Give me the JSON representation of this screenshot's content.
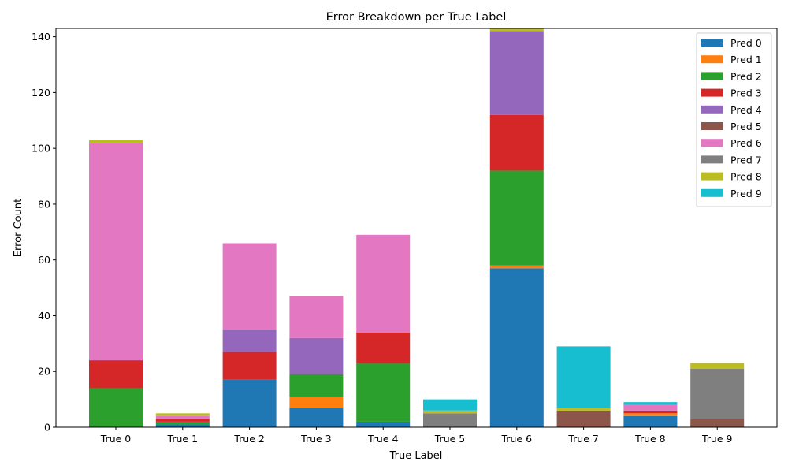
{
  "chart_data": {
    "type": "bar",
    "stacked": true,
    "title": "Error Breakdown per True Label",
    "xlabel": "True Label",
    "ylabel": "Error Count",
    "categories": [
      "True 0",
      "True 1",
      "True 2",
      "True 3",
      "True 4",
      "True 5",
      "True 6",
      "True 7",
      "True 8",
      "True 9"
    ],
    "ylim": [
      0,
      143
    ],
    "yticks": [
      0,
      20,
      40,
      60,
      80,
      100,
      120,
      140
    ],
    "grid": false,
    "legend_position": "top-right",
    "series": [
      {
        "name": "Pred 0",
        "color": "#1f77b4",
        "values": [
          0,
          1,
          17,
          7,
          2,
          0,
          57,
          0,
          4,
          0
        ]
      },
      {
        "name": "Pred 1",
        "color": "#ff7f0e",
        "values": [
          0,
          0,
          0,
          4,
          0,
          0,
          1,
          0,
          1,
          0
        ]
      },
      {
        "name": "Pred 2",
        "color": "#2ca02c",
        "values": [
          14,
          1,
          0,
          8,
          21,
          0,
          34,
          0,
          0,
          0
        ]
      },
      {
        "name": "Pred 3",
        "color": "#d62728",
        "values": [
          10,
          1,
          10,
          0,
          11,
          0,
          20,
          0,
          1,
          0
        ]
      },
      {
        "name": "Pred 4",
        "color": "#9467bd",
        "values": [
          0,
          0,
          8,
          13,
          0,
          0,
          30,
          0,
          0,
          0
        ]
      },
      {
        "name": "Pred 5",
        "color": "#8c564b",
        "values": [
          0,
          0,
          0,
          0,
          0,
          0,
          0,
          6,
          0,
          3
        ]
      },
      {
        "name": "Pred 6",
        "color": "#e377c2",
        "values": [
          78,
          1,
          31,
          15,
          35,
          0,
          0,
          0,
          2,
          0
        ]
      },
      {
        "name": "Pred 7",
        "color": "#7f7f7f",
        "values": [
          0,
          0,
          0,
          0,
          0,
          5,
          0,
          0,
          0,
          18
        ]
      },
      {
        "name": "Pred 8",
        "color": "#bcbd22",
        "values": [
          1,
          1,
          0,
          0,
          0,
          1,
          1,
          1,
          0,
          2
        ]
      },
      {
        "name": "Pred 9",
        "color": "#17becf",
        "values": [
          0,
          0,
          0,
          0,
          0,
          4,
          0,
          22,
          1,
          0
        ]
      }
    ]
  }
}
